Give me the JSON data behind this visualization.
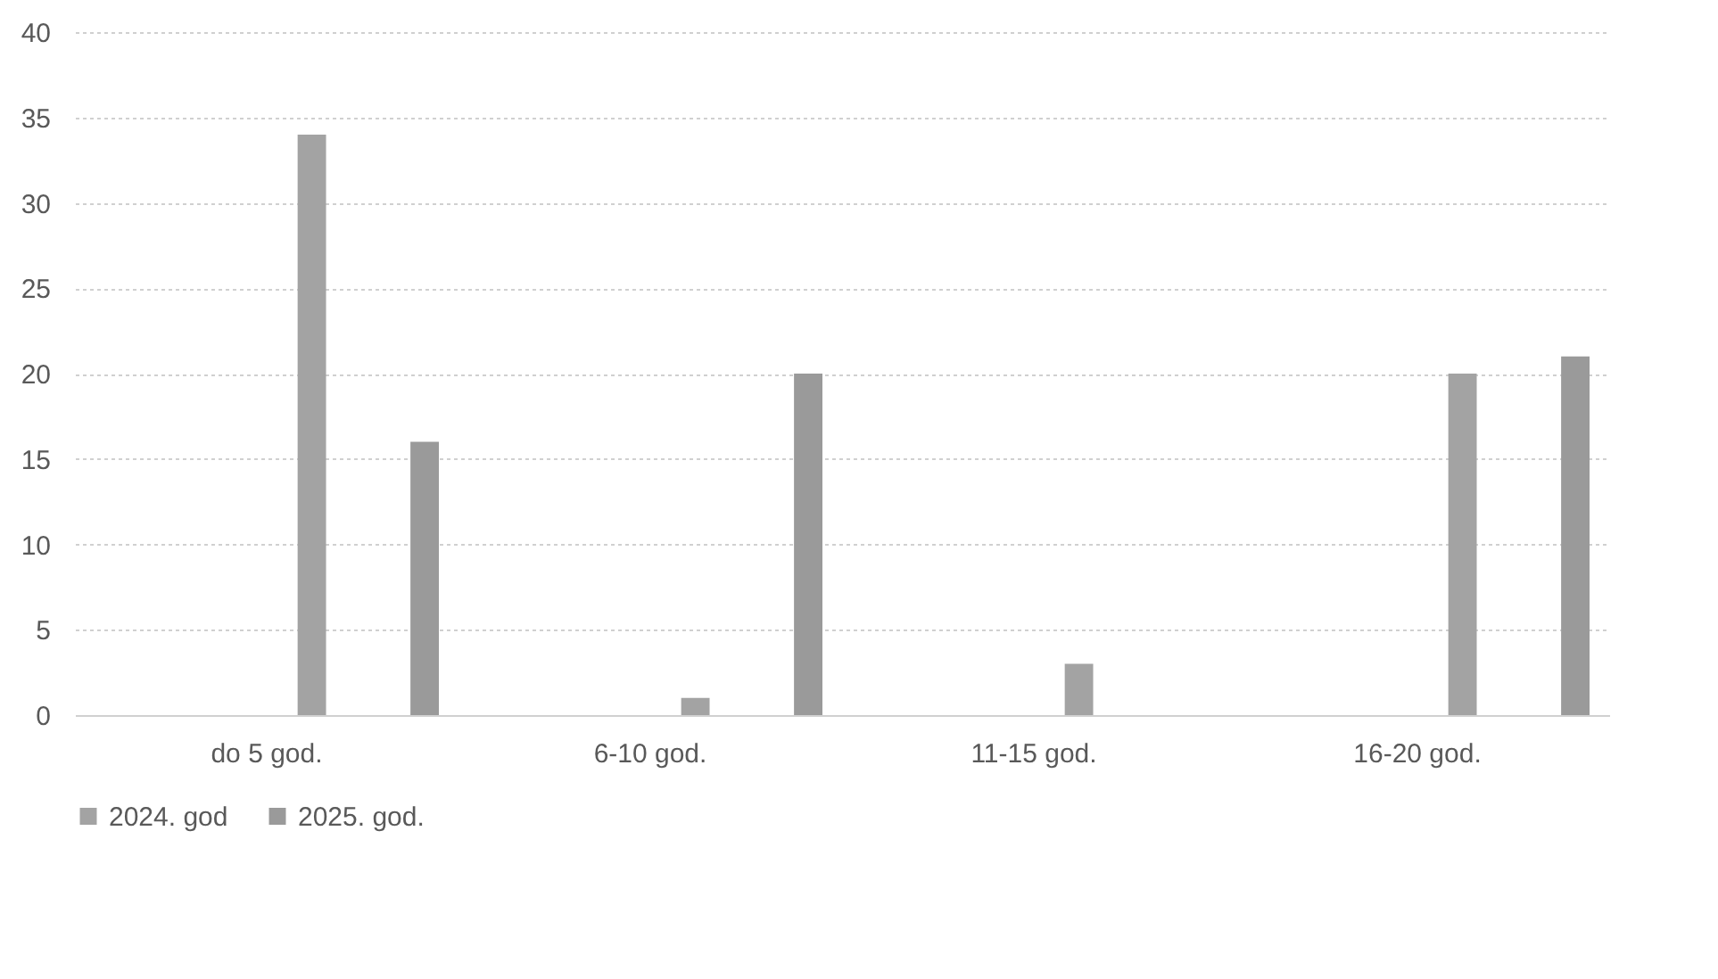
{
  "chart_data": {
    "type": "bar",
    "categories": [
      "do 5 god.",
      "6-10 god.",
      "11-15 god.",
      "16-20 god."
    ],
    "series": [
      {
        "name": "2024. god",
        "color": "#a3a3a3",
        "values": [
          34,
          1,
          3,
          20
        ]
      },
      {
        "name": "2025. god.",
        "color": "#9a9a9a",
        "values": [
          16,
          20,
          0,
          21
        ]
      }
    ],
    "ylim": [
      0,
      40
    ],
    "yticks": [
      0,
      5,
      10,
      15,
      20,
      25,
      30,
      35,
      40
    ],
    "grid": "y",
    "legend": "bottom"
  }
}
